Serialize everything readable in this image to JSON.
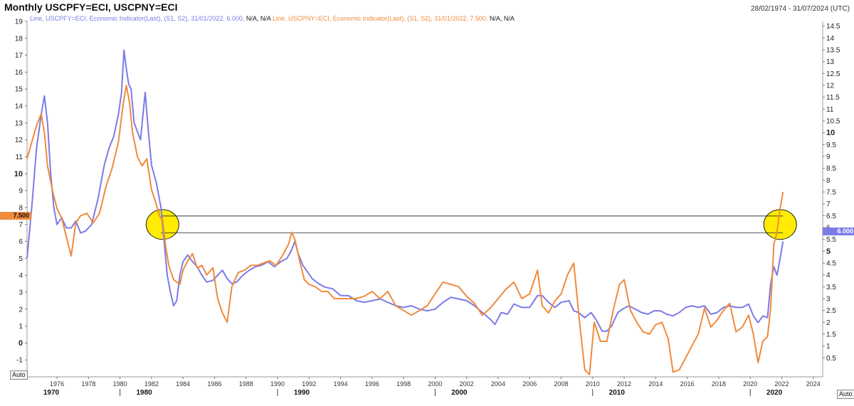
{
  "header": {
    "title": "Monthly USCPFY=ECI, USCPNY=ECI",
    "date_range": "28/02/1974 - 31/07/2024 (UTC)"
  },
  "legend": {
    "series1_text": "Line, USCPFY=ECI, Economic Indicator(Last), (S1, S2), 31/01/2022, 6.000,",
    "series2_text": "Line, USCPNY=ECI, Economic Indicator(Last), (S1, S2), 31/01/2022, 7.500,",
    "na_text": "N/A, N/A",
    "series1_color": "#7b7be8",
    "series2_color": "#f08a3c"
  },
  "left_tag": "7.500",
  "right_tag": "6.000",
  "auto_left": "Auto",
  "auto_right": "Auto",
  "colors": {
    "highlight": "#ffec00",
    "axis": "#888888",
    "guide": "#222222"
  },
  "chart_data": {
    "type": "line",
    "x_axis": {
      "min": 1974.1,
      "max": 2024.6,
      "ticks": [
        "1976",
        "1978",
        "1980",
        "1982",
        "1984",
        "1986",
        "1988",
        "1990",
        "1992",
        "1994",
        "1996",
        "1998",
        "2000",
        "2002",
        "2004",
        "2006",
        "2008",
        "2010",
        "2012",
        "2014",
        "2016",
        "2018",
        "2020",
        "2022",
        "2024"
      ],
      "decades": [
        "1970",
        "1980",
        "1990",
        "2000",
        "2010",
        "2020"
      ]
    },
    "left_axis": {
      "min": -2,
      "max": 19,
      "ticks": [
        "-1",
        "0",
        "1",
        "2",
        "3",
        "4",
        "5",
        "6",
        "7",
        "8",
        "9",
        "10",
        "11",
        "12",
        "13",
        "14",
        "15",
        "16",
        "17",
        "18",
        "19"
      ]
    },
    "right_axis": {
      "min": -0.3,
      "max": 14.7,
      "ticks": [
        "0.5",
        "1",
        "1.5",
        "2",
        "2.5",
        "3",
        "3.5",
        "4",
        "4.5",
        "5",
        "5.5",
        "6",
        "6.5",
        "7",
        "7.5",
        "8",
        "8.5",
        "9",
        "9.5",
        "10",
        "10.5",
        "11",
        "11.5",
        "12",
        "12.5",
        "13",
        "13.5",
        "14",
        "14.5"
      ]
    },
    "series": [
      {
        "name": "USCPFY=ECI",
        "color": "#7b7be8",
        "axis": "left",
        "points": [
          [
            1974.1,
            5.0
          ],
          [
            1974.4,
            8.0
          ],
          [
            1974.7,
            11.5
          ],
          [
            1975.0,
            13.5
          ],
          [
            1975.2,
            14.6
          ],
          [
            1975.4,
            13.0
          ],
          [
            1975.6,
            10.0
          ],
          [
            1975.8,
            8.0
          ],
          [
            1976.0,
            7.0
          ],
          [
            1976.3,
            7.4
          ],
          [
            1976.6,
            6.8
          ],
          [
            1976.9,
            6.8
          ],
          [
            1977.2,
            7.2
          ],
          [
            1977.5,
            6.5
          ],
          [
            1977.8,
            6.6
          ],
          [
            1978.2,
            7.0
          ],
          [
            1978.6,
            8.5
          ],
          [
            1979.0,
            10.5
          ],
          [
            1979.3,
            11.5
          ],
          [
            1979.6,
            12.2
          ],
          [
            1979.9,
            13.5
          ],
          [
            1980.1,
            14.8
          ],
          [
            1980.25,
            17.3
          ],
          [
            1980.4,
            16.2
          ],
          [
            1980.55,
            15.3
          ],
          [
            1980.7,
            15.0
          ],
          [
            1980.9,
            13.0
          ],
          [
            1981.1,
            12.5
          ],
          [
            1981.3,
            12.0
          ],
          [
            1981.6,
            14.8
          ],
          [
            1981.8,
            12.5
          ],
          [
            1982.0,
            10.5
          ],
          [
            1982.3,
            9.5
          ],
          [
            1982.6,
            8.0
          ],
          [
            1982.8,
            6.0
          ],
          [
            1983.0,
            4.0
          ],
          [
            1983.2,
            3.0
          ],
          [
            1983.4,
            2.2
          ],
          [
            1983.6,
            2.5
          ],
          [
            1983.8,
            4.0
          ],
          [
            1984.0,
            4.8
          ],
          [
            1984.3,
            5.2
          ],
          [
            1984.6,
            4.8
          ],
          [
            1984.9,
            4.5
          ],
          [
            1985.2,
            4.0
          ],
          [
            1985.5,
            3.6
          ],
          [
            1985.9,
            3.7
          ],
          [
            1986.2,
            4.0
          ],
          [
            1986.5,
            4.3
          ],
          [
            1986.8,
            3.8
          ],
          [
            1987.1,
            3.5
          ],
          [
            1987.4,
            3.6
          ],
          [
            1987.8,
            4.0
          ],
          [
            1988.2,
            4.3
          ],
          [
            1988.6,
            4.5
          ],
          [
            1989.0,
            4.6
          ],
          [
            1989.4,
            4.8
          ],
          [
            1989.8,
            4.5
          ],
          [
            1990.2,
            4.8
          ],
          [
            1990.6,
            5.0
          ],
          [
            1990.9,
            5.5
          ],
          [
            1991.1,
            6.0
          ],
          [
            1991.3,
            5.3
          ],
          [
            1991.6,
            4.6
          ],
          [
            1991.9,
            4.2
          ],
          [
            1992.2,
            3.8
          ],
          [
            1992.6,
            3.5
          ],
          [
            1993.0,
            3.3
          ],
          [
            1993.5,
            3.2
          ],
          [
            1994.0,
            2.8
          ],
          [
            1994.5,
            2.8
          ],
          [
            1995.0,
            2.5
          ],
          [
            1995.5,
            2.4
          ],
          [
            1996.0,
            2.5
          ],
          [
            1996.5,
            2.6
          ],
          [
            1997.0,
            2.4
          ],
          [
            1997.5,
            2.2
          ],
          [
            1998.0,
            2.1
          ],
          [
            1998.5,
            2.2
          ],
          [
            1999.0,
            2.0
          ],
          [
            1999.5,
            1.9
          ],
          [
            2000.0,
            2.0
          ],
          [
            2000.5,
            2.4
          ],
          [
            2001.0,
            2.7
          ],
          [
            2001.5,
            2.6
          ],
          [
            2002.0,
            2.5
          ],
          [
            2002.5,
            2.2
          ],
          [
            2003.0,
            1.8
          ],
          [
            2003.5,
            1.4
          ],
          [
            2003.8,
            1.1
          ],
          [
            2004.2,
            1.8
          ],
          [
            2004.6,
            1.7
          ],
          [
            2005.0,
            2.3
          ],
          [
            2005.5,
            2.1
          ],
          [
            2006.0,
            2.1
          ],
          [
            2006.5,
            2.8
          ],
          [
            2006.8,
            2.8
          ],
          [
            2007.2,
            2.4
          ],
          [
            2007.6,
            2.1
          ],
          [
            2008.0,
            2.4
          ],
          [
            2008.5,
            2.5
          ],
          [
            2008.8,
            1.9
          ],
          [
            2009.1,
            1.8
          ],
          [
            2009.5,
            1.5
          ],
          [
            2009.9,
            1.8
          ],
          [
            2010.2,
            1.4
          ],
          [
            2010.6,
            0.7
          ],
          [
            2010.9,
            0.7
          ],
          [
            2011.2,
            1.0
          ],
          [
            2011.6,
            1.8
          ],
          [
            2011.9,
            2.0
          ],
          [
            2012.3,
            2.2
          ],
          [
            2012.7,
            2.0
          ],
          [
            2013.1,
            1.8
          ],
          [
            2013.5,
            1.7
          ],
          [
            2013.9,
            1.9
          ],
          [
            2014.3,
            1.9
          ],
          [
            2014.7,
            1.7
          ],
          [
            2015.1,
            1.6
          ],
          [
            2015.5,
            1.8
          ],
          [
            2015.9,
            2.1
          ],
          [
            2016.3,
            2.2
          ],
          [
            2016.7,
            2.1
          ],
          [
            2017.1,
            2.2
          ],
          [
            2017.5,
            1.7
          ],
          [
            2017.9,
            1.8
          ],
          [
            2018.3,
            2.1
          ],
          [
            2018.7,
            2.2
          ],
          [
            2019.1,
            2.1
          ],
          [
            2019.5,
            2.1
          ],
          [
            2019.9,
            2.3
          ],
          [
            2020.2,
            1.6
          ],
          [
            2020.5,
            1.2
          ],
          [
            2020.8,
            1.6
          ],
          [
            2021.1,
            1.5
          ],
          [
            2021.3,
            3.5
          ],
          [
            2021.5,
            4.5
          ],
          [
            2021.7,
            4.0
          ],
          [
            2021.9,
            5.0
          ],
          [
            2022.08,
            6.0
          ]
        ]
      },
      {
        "name": "USCPNY=ECI",
        "color": "#f08a3c",
        "axis": "right",
        "points": [
          [
            1974.1,
            8.9
          ],
          [
            1974.4,
            9.6
          ],
          [
            1974.7,
            10.3
          ],
          [
            1975.0,
            10.8
          ],
          [
            1975.2,
            10.0
          ],
          [
            1975.4,
            8.6
          ],
          [
            1975.7,
            7.6
          ],
          [
            1976.0,
            6.8
          ],
          [
            1976.3,
            6.4
          ],
          [
            1976.6,
            5.6
          ],
          [
            1976.9,
            4.8
          ],
          [
            1977.2,
            6.2
          ],
          [
            1977.5,
            6.5
          ],
          [
            1977.9,
            6.6
          ],
          [
            1978.3,
            6.2
          ],
          [
            1978.7,
            6.6
          ],
          [
            1979.1,
            7.7
          ],
          [
            1979.5,
            8.5
          ],
          [
            1979.9,
            9.6
          ],
          [
            1980.2,
            11.2
          ],
          [
            1980.4,
            12.0
          ],
          [
            1980.6,
            11.3
          ],
          [
            1980.8,
            10.0
          ],
          [
            1981.1,
            9.0
          ],
          [
            1981.4,
            8.6
          ],
          [
            1981.7,
            8.9
          ],
          [
            1982.0,
            7.6
          ],
          [
            1982.3,
            7.0
          ],
          [
            1982.5,
            6.5
          ],
          [
            1982.7,
            6.3
          ],
          [
            1982.9,
            5.2
          ],
          [
            1983.1,
            4.4
          ],
          [
            1983.4,
            3.8
          ],
          [
            1983.8,
            3.6
          ],
          [
            1984.0,
            4.2
          ],
          [
            1984.3,
            4.6
          ],
          [
            1984.6,
            4.9
          ],
          [
            1984.9,
            4.3
          ],
          [
            1985.2,
            4.4
          ],
          [
            1985.5,
            4.0
          ],
          [
            1985.9,
            4.3
          ],
          [
            1986.2,
            3.0
          ],
          [
            1986.5,
            2.4
          ],
          [
            1986.8,
            2.0
          ],
          [
            1987.1,
            3.5
          ],
          [
            1987.5,
            4.1
          ],
          [
            1987.9,
            4.2
          ],
          [
            1988.3,
            4.4
          ],
          [
            1988.7,
            4.4
          ],
          [
            1989.1,
            4.5
          ],
          [
            1989.5,
            4.6
          ],
          [
            1989.9,
            4.4
          ],
          [
            1990.3,
            4.8
          ],
          [
            1990.7,
            5.3
          ],
          [
            1990.9,
            5.8
          ],
          [
            1991.1,
            5.5
          ],
          [
            1991.4,
            4.6
          ],
          [
            1991.7,
            3.8
          ],
          [
            1992.0,
            3.6
          ],
          [
            1992.4,
            3.5
          ],
          [
            1992.8,
            3.3
          ],
          [
            1993.2,
            3.3
          ],
          [
            1993.6,
            3.0
          ],
          [
            1994.0,
            3.0
          ],
          [
            1994.5,
            3.0
          ],
          [
            1995.0,
            3.0
          ],
          [
            1995.5,
            3.1
          ],
          [
            1996.0,
            3.3
          ],
          [
            1996.5,
            3.0
          ],
          [
            1997.0,
            3.3
          ],
          [
            1997.5,
            2.7
          ],
          [
            1998.0,
            2.5
          ],
          [
            1998.5,
            2.3
          ],
          [
            1999.0,
            2.5
          ],
          [
            1999.5,
            2.7
          ],
          [
            2000.0,
            3.2
          ],
          [
            2000.5,
            3.7
          ],
          [
            2001.0,
            3.6
          ],
          [
            2001.5,
            3.5
          ],
          [
            2002.0,
            3.1
          ],
          [
            2002.5,
            2.8
          ],
          [
            2003.0,
            2.3
          ],
          [
            2003.5,
            2.6
          ],
          [
            2004.0,
            3.0
          ],
          [
            2004.5,
            3.4
          ],
          [
            2005.0,
            3.7
          ],
          [
            2005.5,
            3.0
          ],
          [
            2006.0,
            3.2
          ],
          [
            2006.5,
            4.2
          ],
          [
            2006.8,
            2.7
          ],
          [
            2007.2,
            2.4
          ],
          [
            2007.6,
            2.9
          ],
          [
            2008.0,
            3.2
          ],
          [
            2008.4,
            4.0
          ],
          [
            2008.8,
            4.5
          ],
          [
            2009.2,
            1.8
          ],
          [
            2009.5,
            0.0
          ],
          [
            2009.8,
            -0.2
          ],
          [
            2010.1,
            2.0
          ],
          [
            2010.5,
            1.2
          ],
          [
            2010.9,
            1.2
          ],
          [
            2011.3,
            2.5
          ],
          [
            2011.7,
            3.6
          ],
          [
            2012.0,
            3.8
          ],
          [
            2012.4,
            2.5
          ],
          [
            2012.8,
            2.0
          ],
          [
            2013.2,
            1.6
          ],
          [
            2013.6,
            1.5
          ],
          [
            2014.0,
            1.9
          ],
          [
            2014.4,
            2.0
          ],
          [
            2014.8,
            1.3
          ],
          [
            2015.1,
            -0.1
          ],
          [
            2015.5,
            0.0
          ],
          [
            2015.9,
            0.5
          ],
          [
            2016.3,
            1.0
          ],
          [
            2016.7,
            1.5
          ],
          [
            2017.1,
            2.6
          ],
          [
            2017.5,
            1.8
          ],
          [
            2017.9,
            2.1
          ],
          [
            2018.3,
            2.5
          ],
          [
            2018.7,
            2.8
          ],
          [
            2019.1,
            1.6
          ],
          [
            2019.5,
            1.8
          ],
          [
            2019.9,
            2.3
          ],
          [
            2020.2,
            1.5
          ],
          [
            2020.5,
            0.3
          ],
          [
            2020.8,
            1.2
          ],
          [
            2021.1,
            1.4
          ],
          [
            2021.3,
            2.6
          ],
          [
            2021.5,
            5.3
          ],
          [
            2021.7,
            5.8
          ],
          [
            2021.9,
            6.8
          ],
          [
            2022.08,
            7.5
          ]
        ]
      }
    ],
    "reference_lines": [
      {
        "axis": "left",
        "value": 7.5,
        "from": 1982.6,
        "to": 2022.08
      },
      {
        "axis": "left",
        "value": 6.5,
        "from": 1982.6,
        "to": 2022.08
      }
    ],
    "highlights": [
      {
        "x": 1982.7,
        "y": 7.0
      },
      {
        "x": 2021.9,
        "y": 7.0
      }
    ]
  }
}
